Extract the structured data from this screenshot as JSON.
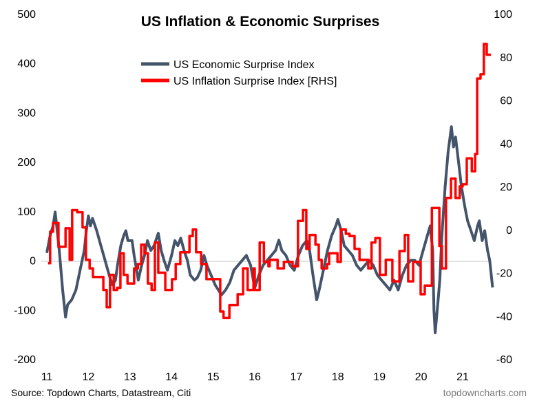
{
  "chart_data": {
    "type": "line",
    "title": "US Inflation & Economic Surprises",
    "source": "Source: Topdown Charts, Datastream, Citi",
    "brand": "topdowncharts.com",
    "x_ticks": [
      "11",
      "12",
      "13",
      "14",
      "15",
      "16",
      "17",
      "18",
      "19",
      "20",
      "21"
    ],
    "x_tick_values": [
      11,
      12,
      13,
      14,
      15,
      16,
      17,
      18,
      19,
      20,
      21
    ],
    "xlim": [
      11,
      21.75
    ],
    "left_axis": {
      "ylim": [
        -200,
        500
      ],
      "ticks": [
        "-200",
        "-100",
        "0",
        "100",
        "200",
        "300",
        "400",
        "500"
      ],
      "tick_values": [
        -200,
        -100,
        0,
        100,
        200,
        300,
        400,
        500
      ]
    },
    "right_axis": {
      "ylim": [
        -60,
        100
      ],
      "ticks": [
        "-60",
        "-40",
        "-20",
        "0",
        "20",
        "40",
        "60",
        "80",
        "100"
      ],
      "tick_values": [
        -60,
        -40,
        -20,
        0,
        20,
        40,
        60,
        80,
        100
      ]
    },
    "zero_gridline": true,
    "legend_position": "top-center",
    "series": [
      {
        "name": "US Economic Surprise Index",
        "axis": "left",
        "color": "#44546a",
        "step": false,
        "points": [
          [
            11.0,
            15
          ],
          [
            11.08,
            50
          ],
          [
            11.15,
            70
          ],
          [
            11.2,
            98
          ],
          [
            11.25,
            60
          ],
          [
            11.3,
            20
          ],
          [
            11.38,
            -60
          ],
          [
            11.45,
            -115
          ],
          [
            11.5,
            -90
          ],
          [
            11.6,
            -80
          ],
          [
            11.7,
            -60
          ],
          [
            11.8,
            -20
          ],
          [
            11.9,
            20
          ],
          [
            11.95,
            60
          ],
          [
            12.0,
            90
          ],
          [
            12.05,
            70
          ],
          [
            12.1,
            85
          ],
          [
            12.2,
            60
          ],
          [
            12.3,
            30
          ],
          [
            12.4,
            0
          ],
          [
            12.5,
            -30
          ],
          [
            12.58,
            -50
          ],
          [
            12.65,
            -40
          ],
          [
            12.7,
            -10
          ],
          [
            12.78,
            30
          ],
          [
            12.85,
            50
          ],
          [
            12.9,
            60
          ],
          [
            12.95,
            40
          ],
          [
            13.05,
            40
          ],
          [
            13.1,
            10
          ],
          [
            13.2,
            -40
          ],
          [
            13.28,
            -10
          ],
          [
            13.35,
            10
          ],
          [
            13.42,
            40
          ],
          [
            13.5,
            20
          ],
          [
            13.58,
            30
          ],
          [
            13.68,
            55
          ],
          [
            13.75,
            20
          ],
          [
            13.82,
            0
          ],
          [
            13.9,
            -20
          ],
          [
            14.0,
            10
          ],
          [
            14.08,
            40
          ],
          [
            14.15,
            30
          ],
          [
            14.22,
            45
          ],
          [
            14.3,
            20
          ],
          [
            14.38,
            0
          ],
          [
            14.45,
            -30
          ],
          [
            14.55,
            -40
          ],
          [
            14.62,
            -35
          ],
          [
            14.7,
            -20
          ],
          [
            14.78,
            10
          ],
          [
            14.85,
            -10
          ],
          [
            14.95,
            -30
          ],
          [
            15.05,
            -50
          ],
          [
            15.2,
            -70
          ],
          [
            15.3,
            -60
          ],
          [
            15.4,
            -45
          ],
          [
            15.5,
            -20
          ],
          [
            15.6,
            -10
          ],
          [
            15.7,
            0
          ],
          [
            15.8,
            10
          ],
          [
            15.9,
            -10
          ],
          [
            16.0,
            -56
          ],
          [
            16.1,
            -30
          ],
          [
            16.2,
            -10
          ],
          [
            16.3,
            0
          ],
          [
            16.4,
            10
          ],
          [
            16.5,
            20
          ],
          [
            16.58,
            41
          ],
          [
            16.65,
            20
          ],
          [
            16.75,
            10
          ],
          [
            16.85,
            -10
          ],
          [
            16.95,
            -20
          ],
          [
            17.05,
            10
          ],
          [
            17.15,
            30
          ],
          [
            17.25,
            40
          ],
          [
            17.32,
            20
          ],
          [
            17.4,
            -30
          ],
          [
            17.49,
            -80
          ],
          [
            17.55,
            -60
          ],
          [
            17.65,
            -20
          ],
          [
            17.75,
            20
          ],
          [
            17.85,
            50
          ],
          [
            17.95,
            70
          ],
          [
            18.0,
            83
          ],
          [
            18.08,
            60
          ],
          [
            18.15,
            30
          ],
          [
            18.25,
            20
          ],
          [
            18.35,
            10
          ],
          [
            18.45,
            -10
          ],
          [
            18.55,
            -20
          ],
          [
            18.65,
            -10
          ],
          [
            18.75,
            0
          ],
          [
            18.85,
            -10
          ],
          [
            18.95,
            -30
          ],
          [
            19.05,
            -40
          ],
          [
            19.15,
            -50
          ],
          [
            19.25,
            -60
          ],
          [
            19.35,
            -40
          ],
          [
            19.45,
            -60
          ],
          [
            19.55,
            -30
          ],
          [
            19.65,
            -10
          ],
          [
            19.75,
            0
          ],
          [
            19.85,
            0
          ],
          [
            19.95,
            -10
          ],
          [
            20.05,
            20
          ],
          [
            20.15,
            50
          ],
          [
            20.22,
            70
          ],
          [
            20.28,
            20
          ],
          [
            20.31,
            -100
          ],
          [
            20.34,
            -147
          ],
          [
            20.4,
            -90
          ],
          [
            20.45,
            -40
          ],
          [
            20.5,
            50
          ],
          [
            20.58,
            150
          ],
          [
            20.65,
            220
          ],
          [
            20.73,
            271
          ],
          [
            20.78,
            230
          ],
          [
            20.83,
            250
          ],
          [
            20.9,
            200
          ],
          [
            20.97,
            150
          ],
          [
            21.05,
            110
          ],
          [
            21.12,
            80
          ],
          [
            21.2,
            60
          ],
          [
            21.28,
            40
          ],
          [
            21.36,
            70
          ],
          [
            21.4,
            80
          ],
          [
            21.47,
            40
          ],
          [
            21.53,
            60
          ],
          [
            21.6,
            20
          ],
          [
            21.65,
            0
          ],
          [
            21.72,
            -55
          ]
        ]
      },
      {
        "name": "US Inflation Surprise Index [RHS]",
        "axis": "right",
        "color": "#ff0000",
        "step": true,
        "points": [
          [
            11.03,
            -15.6
          ],
          [
            11.08,
            -1
          ],
          [
            11.15,
            3
          ],
          [
            11.28,
            -8
          ],
          [
            11.45,
            0.6
          ],
          [
            11.55,
            -14
          ],
          [
            11.61,
            9
          ],
          [
            11.73,
            8
          ],
          [
            11.86,
            1
          ],
          [
            11.94,
            -14
          ],
          [
            12.03,
            -18
          ],
          [
            12.11,
            -22
          ],
          [
            12.36,
            -28
          ],
          [
            12.44,
            -36
          ],
          [
            12.52,
            -21
          ],
          [
            12.61,
            -28
          ],
          [
            12.69,
            -27
          ],
          [
            12.77,
            -11
          ],
          [
            12.85,
            -21
          ],
          [
            12.94,
            -25
          ],
          [
            13.1,
            -18
          ],
          [
            13.19,
            -16
          ],
          [
            13.27,
            -7
          ],
          [
            13.35,
            -11
          ],
          [
            13.43,
            -25
          ],
          [
            13.52,
            -28
          ],
          [
            13.6,
            -6
          ],
          [
            13.68,
            -20
          ],
          [
            13.85,
            -28
          ],
          [
            14.01,
            -23
          ],
          [
            14.1,
            -16
          ],
          [
            14.21,
            -10.5
          ],
          [
            14.43,
            -3
          ],
          [
            14.51,
            0
          ],
          [
            14.59,
            -10.5
          ],
          [
            14.71,
            -16
          ],
          [
            14.84,
            -23
          ],
          [
            15.17,
            -38
          ],
          [
            15.25,
            -41
          ],
          [
            15.39,
            -35
          ],
          [
            15.59,
            -30
          ],
          [
            15.72,
            -18
          ],
          [
            15.83,
            -28
          ],
          [
            15.97,
            -18
          ],
          [
            16.0,
            -28
          ],
          [
            16.12,
            -6
          ],
          [
            16.22,
            -15
          ],
          [
            16.33,
            -17
          ],
          [
            16.36,
            -14
          ],
          [
            16.55,
            -18
          ],
          [
            16.7,
            -15
          ],
          [
            16.91,
            -17
          ],
          [
            17.04,
            4
          ],
          [
            17.16,
            9
          ],
          [
            17.24,
            -9
          ],
          [
            17.32,
            -2.5
          ],
          [
            17.46,
            -7
          ],
          [
            17.54,
            -14
          ],
          [
            17.61,
            -18
          ],
          [
            17.74,
            -16
          ],
          [
            17.79,
            -11
          ],
          [
            17.99,
            -15
          ],
          [
            18.07,
            0
          ],
          [
            18.19,
            -2
          ],
          [
            18.28,
            -3
          ],
          [
            18.4,
            -9
          ],
          [
            18.52,
            -14
          ],
          [
            18.73,
            -18
          ],
          [
            18.81,
            -6
          ],
          [
            18.9,
            -4
          ],
          [
            19.01,
            -21
          ],
          [
            19.15,
            -14
          ],
          [
            19.31,
            -24
          ],
          [
            19.48,
            -10
          ],
          [
            19.61,
            -2.5
          ],
          [
            19.69,
            -24
          ],
          [
            19.81,
            -15
          ],
          [
            19.99,
            -30
          ],
          [
            20.09,
            -26
          ],
          [
            20.26,
            10
          ],
          [
            20.44,
            -7.6
          ],
          [
            20.5,
            -18
          ],
          [
            20.6,
            14.6
          ],
          [
            20.72,
            23.6
          ],
          [
            20.83,
            14.6
          ],
          [
            20.93,
            20
          ],
          [
            21.0,
            21
          ],
          [
            21.1,
            33
          ],
          [
            21.22,
            27
          ],
          [
            21.3,
            35
          ],
          [
            21.35,
            70
          ],
          [
            21.43,
            72
          ],
          [
            21.51,
            86
          ],
          [
            21.58,
            81
          ],
          [
            21.68,
            81
          ]
        ]
      }
    ]
  }
}
